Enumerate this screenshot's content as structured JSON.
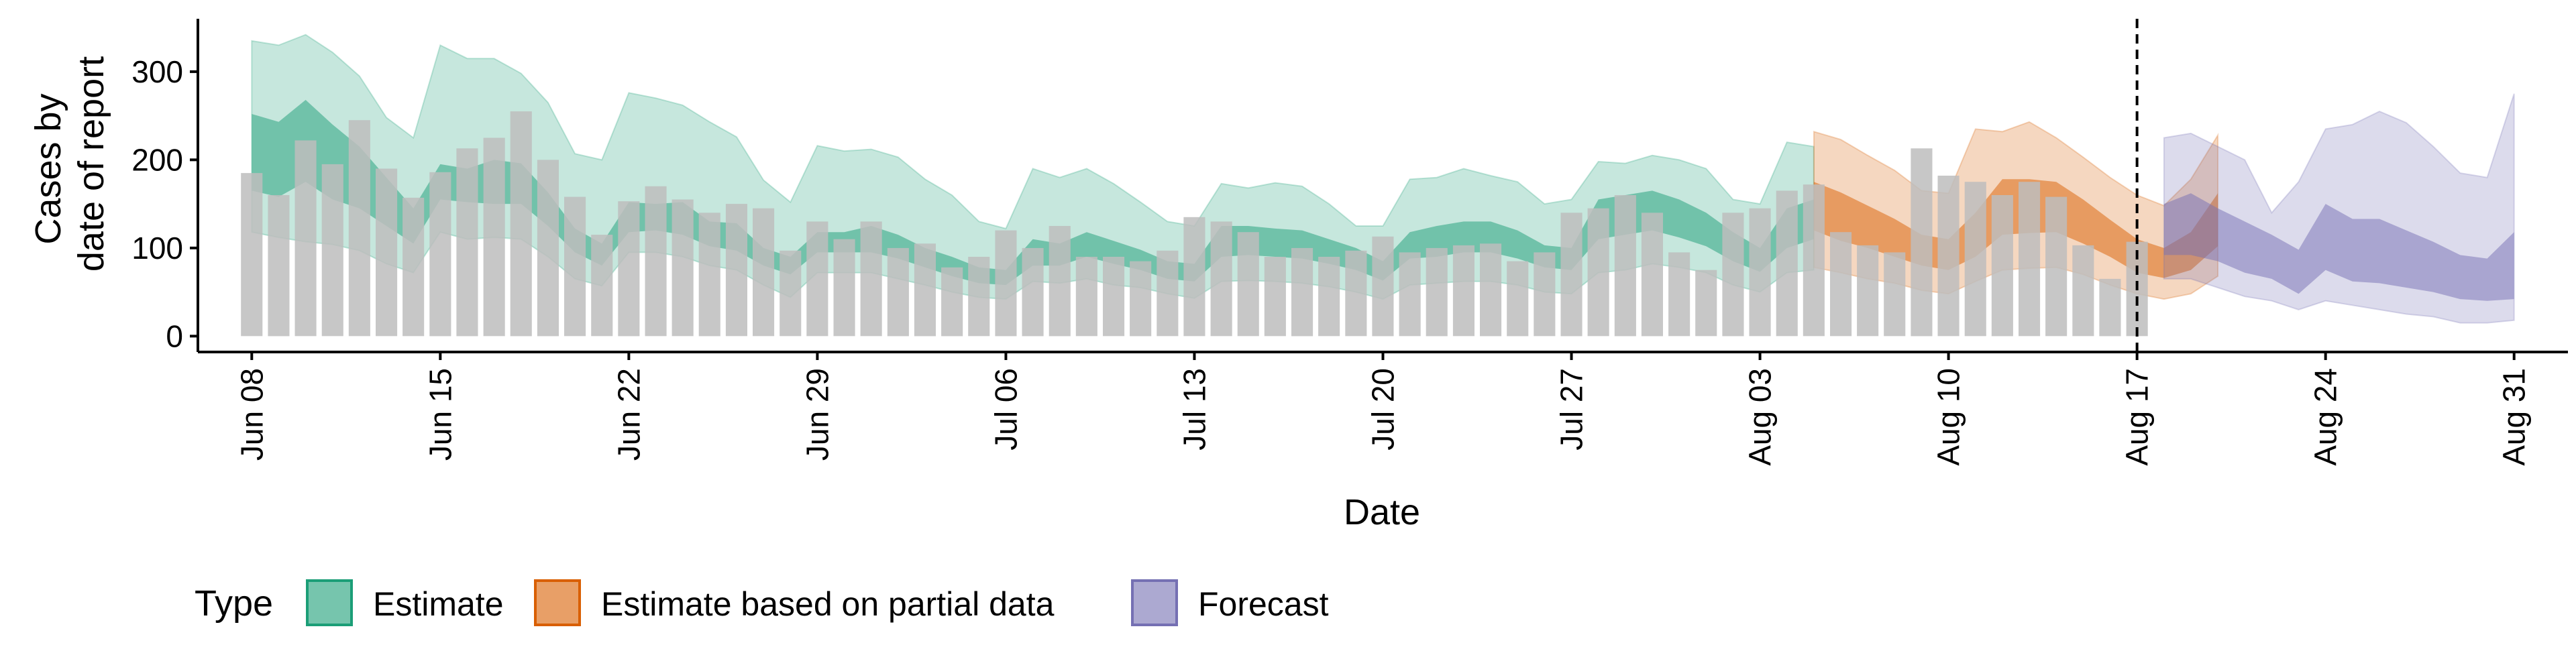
{
  "chart_data": {
    "type": "bar",
    "title": "",
    "xlabel": "Date",
    "ylabel_lines": [
      "Cases by",
      "date of report"
    ],
    "ylim": [
      -18,
      360
    ],
    "yticks": [
      0,
      100,
      200,
      300
    ],
    "xlim": [
      "2020-06-06",
      "2020-09-02"
    ],
    "xticks": [
      {
        "date": "2020-06-08",
        "label": "Jun 08"
      },
      {
        "date": "2020-06-15",
        "label": "Jun 15"
      },
      {
        "date": "2020-06-22",
        "label": "Jun 22"
      },
      {
        "date": "2020-06-29",
        "label": "Jun 29"
      },
      {
        "date": "2020-07-06",
        "label": "Jul 06"
      },
      {
        "date": "2020-07-13",
        "label": "Jul 13"
      },
      {
        "date": "2020-07-20",
        "label": "Jul 20"
      },
      {
        "date": "2020-07-27",
        "label": "Jul 27"
      },
      {
        "date": "2020-08-03",
        "label": "Aug 03"
      },
      {
        "date": "2020-08-10",
        "label": "Aug 10"
      },
      {
        "date": "2020-08-17",
        "label": "Aug 17"
      },
      {
        "date": "2020-08-24",
        "label": "Aug 24"
      },
      {
        "date": "2020-08-31",
        "label": "Aug 31"
      }
    ],
    "vline_date": "2020-08-17",
    "grid": false,
    "legend": {
      "title": "Type",
      "placement": "bottom",
      "entries": [
        {
          "label": "Estimate",
          "color": "#1b9e77"
        },
        {
          "label": "Estimate based on partial data",
          "color": "#d95f02"
        },
        {
          "label": "Forecast",
          "color": "#7570b3"
        }
      ]
    },
    "bar_color": "#bdbdbd",
    "reported_cases": {
      "start_date": "2020-06-08",
      "values": [
        185,
        160,
        222,
        195,
        245,
        190,
        157,
        186,
        213,
        225,
        255,
        200,
        158,
        115,
        153,
        170,
        155,
        140,
        150,
        145,
        97,
        130,
        110,
        130,
        100,
        105,
        78,
        90,
        120,
        100,
        125,
        90,
        90,
        85,
        97,
        135,
        130,
        118,
        90,
        100,
        90,
        97,
        113,
        95,
        100,
        103,
        105,
        85,
        95,
        140,
        145,
        160,
        140,
        95,
        75,
        140,
        145,
        165,
        172,
        118,
        103,
        95,
        213,
        182,
        175,
        160,
        175,
        158,
        103,
        65,
        107
      ]
    },
    "series": [
      {
        "name": "Estimate",
        "color": "#1b9e77",
        "start_date": "2020-06-08",
        "outer_upper": [
          335,
          330,
          342,
          322,
          295,
          248,
          225,
          330,
          315,
          315,
          298,
          265,
          207,
          200,
          276,
          270,
          262,
          243,
          226,
          177,
          152,
          216,
          210,
          212,
          203,
          178,
          160,
          130,
          122,
          190,
          180,
          190,
          173,
          152,
          130,
          125,
          173,
          168,
          174,
          170,
          150,
          125,
          125,
          178,
          180,
          190,
          182,
          175,
          150,
          155,
          198,
          196,
          205,
          200,
          190,
          155,
          150,
          220,
          215
        ],
        "mid_upper": [
          252,
          243,
          268,
          240,
          215,
          180,
          145,
          195,
          190,
          200,
          196,
          163,
          122,
          105,
          152,
          150,
          152,
          130,
          128,
          100,
          90,
          118,
          118,
          125,
          115,
          100,
          90,
          78,
          75,
          110,
          105,
          118,
          108,
          98,
          85,
          82,
          125,
          125,
          122,
          120,
          110,
          100,
          85,
          118,
          125,
          130,
          130,
          120,
          103,
          100,
          155,
          160,
          165,
          155,
          140,
          118,
          100,
          145,
          155
        ],
        "mid_lower": [
          165,
          158,
          175,
          155,
          145,
          125,
          105,
          155,
          152,
          150,
          150,
          125,
          95,
          80,
          118,
          120,
          115,
          102,
          97,
          80,
          70,
          95,
          95,
          95,
          88,
          78,
          68,
          60,
          58,
          80,
          80,
          90,
          82,
          75,
          65,
          62,
          90,
          92,
          90,
          88,
          82,
          75,
          63,
          88,
          90,
          95,
          95,
          88,
          78,
          75,
          110,
          115,
          120,
          112,
          102,
          85,
          73,
          100,
          110
        ],
        "outer_lower": [
          118,
          112,
          107,
          104,
          97,
          82,
          72,
          118,
          110,
          112,
          110,
          90,
          65,
          57,
          95,
          95,
          90,
          80,
          75,
          58,
          44,
          72,
          72,
          72,
          65,
          58,
          50,
          44,
          42,
          62,
          60,
          65,
          58,
          55,
          48,
          43,
          62,
          63,
          62,
          60,
          56,
          50,
          42,
          58,
          60,
          62,
          62,
          58,
          50,
          48,
          72,
          75,
          82,
          78,
          72,
          58,
          50,
          72,
          75
        ]
      },
      {
        "name": "Estimate based on partial data",
        "color": "#d95f02",
        "start_date": "2020-08-05",
        "outer_upper": [
          232,
          223,
          205,
          188,
          165,
          162,
          235,
          232,
          243,
          225,
          203,
          180,
          160,
          148,
          178,
          228
        ],
        "mid_upper": [
          175,
          163,
          148,
          133,
          115,
          110,
          140,
          178,
          178,
          175,
          155,
          132,
          110,
          100,
          118,
          162
        ],
        "mid_lower": [
          120,
          108,
          100,
          90,
          80,
          75,
          90,
          115,
          117,
          118,
          105,
          90,
          72,
          66,
          75,
          102
        ],
        "outer_lower": [
          78,
          72,
          65,
          60,
          52,
          48,
          62,
          75,
          77,
          78,
          70,
          58,
          48,
          42,
          48,
          68
        ]
      },
      {
        "name": "Forecast",
        "color": "#7570b3",
        "start_date": "2020-08-18",
        "outer_upper": [
          225,
          230,
          215,
          200,
          140,
          175,
          235,
          240,
          255,
          242,
          215,
          185,
          180,
          275
        ],
        "mid_upper": [
          150,
          162,
          145,
          130,
          115,
          98,
          150,
          133,
          133,
          120,
          107,
          92,
          88,
          118
        ],
        "mid_lower": [
          92,
          92,
          85,
          72,
          65,
          48,
          75,
          62,
          60,
          55,
          50,
          42,
          40,
          42
        ],
        "outer_lower": [
          65,
          65,
          55,
          45,
          40,
          30,
          40,
          35,
          30,
          25,
          22,
          15,
          15,
          18
        ]
      }
    ]
  }
}
